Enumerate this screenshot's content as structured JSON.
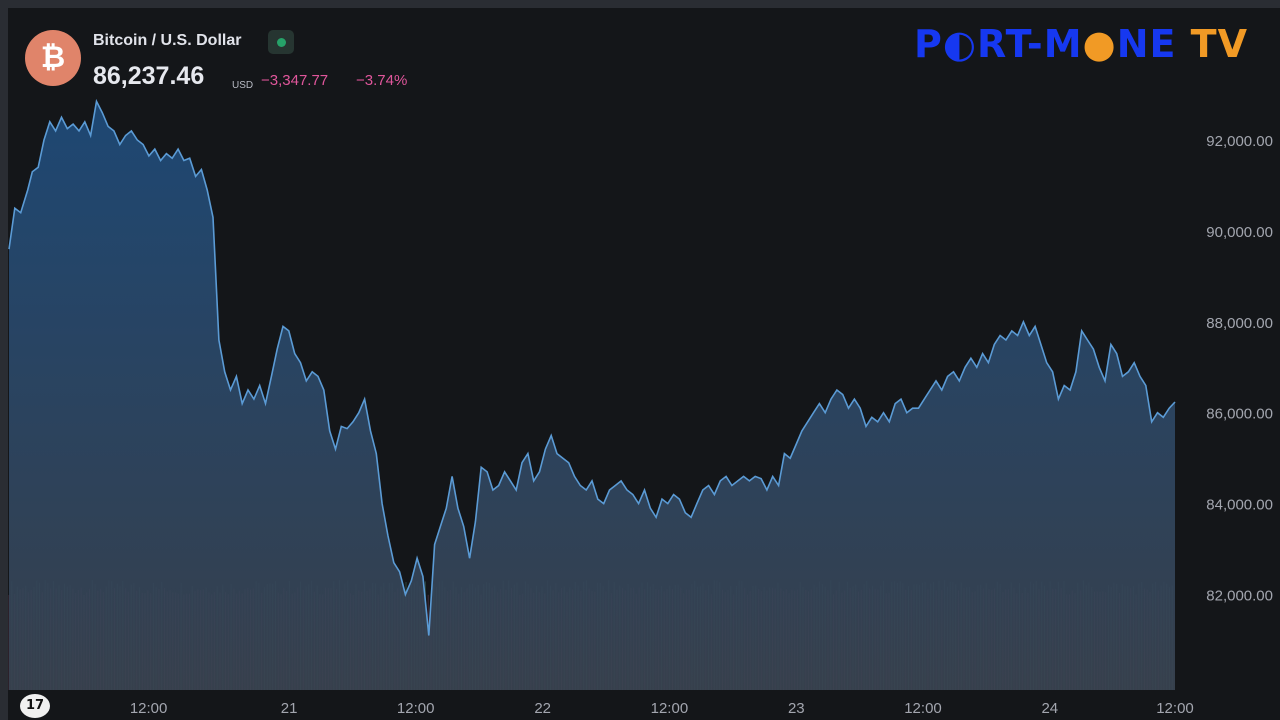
{
  "header": {
    "symbol_name": "Bitcoin / U.S. Dollar",
    "coin_icon": "bitcoin-icon",
    "status": "market-open",
    "price": "86,237.46",
    "currency": "USD",
    "change": "−3,347.77",
    "change_pct": "−3.74%",
    "colors": {
      "down": "#e0569b",
      "status": "#26a269",
      "coin": "#e0846a"
    }
  },
  "logo": {
    "parts": [
      {
        "text": "P",
        "color": "#1638f0"
      },
      {
        "text": "◐",
        "color": "#1638f0"
      },
      {
        "text": "RT-M",
        "color": "#1638f0"
      },
      {
        "text": "●",
        "color": "#f19a25"
      },
      {
        "text": "NE",
        "color": "#1638f0"
      },
      {
        "text": " TV",
        "color": "#f19a25"
      }
    ]
  },
  "chart_data": {
    "type": "area",
    "ylim": [
      79900,
      94200
    ],
    "y_ticks": [
      "92,000.00",
      "90,000.00",
      "88,000.00",
      "86,000.00",
      "84,000.00",
      "82,000.00"
    ],
    "y_tick_values": [
      92000,
      90000,
      88000,
      86000,
      84000,
      82000
    ],
    "x_ticks": [
      "12:00",
      "21",
      "12:00",
      "22",
      "12:00",
      "23",
      "12:00",
      "24",
      "12:00"
    ],
    "x_tick_values": [
      0.1197,
      0.2402,
      0.3488,
      0.4577,
      0.5664,
      0.6752,
      0.7839,
      0.8926,
      1.0
    ],
    "grid": false,
    "line_color": "#5b9bd5",
    "series": [
      {
        "values": [
          [
            0.0,
            89600
          ],
          [
            0.005,
            90500
          ],
          [
            0.01,
            90400
          ],
          [
            0.016,
            90900
          ],
          [
            0.02,
            91300
          ],
          [
            0.025,
            91400
          ],
          [
            0.03,
            92000
          ],
          [
            0.035,
            92400
          ],
          [
            0.04,
            92200
          ],
          [
            0.045,
            92500
          ],
          [
            0.05,
            92250
          ],
          [
            0.055,
            92350
          ],
          [
            0.06,
            92200
          ],
          [
            0.065,
            92400
          ],
          [
            0.07,
            92100
          ],
          [
            0.075,
            92850
          ],
          [
            0.08,
            92600
          ],
          [
            0.085,
            92300
          ],
          [
            0.09,
            92200
          ],
          [
            0.095,
            91900
          ],
          [
            0.1,
            92100
          ],
          [
            0.105,
            92200
          ],
          [
            0.11,
            92000
          ],
          [
            0.115,
            91900
          ],
          [
            0.12,
            91650
          ],
          [
            0.125,
            91800
          ],
          [
            0.13,
            91550
          ],
          [
            0.135,
            91700
          ],
          [
            0.14,
            91600
          ],
          [
            0.145,
            91800
          ],
          [
            0.15,
            91550
          ],
          [
            0.155,
            91600
          ],
          [
            0.16,
            91200
          ],
          [
            0.165,
            91350
          ],
          [
            0.17,
            90900
          ],
          [
            0.175,
            90300
          ],
          [
            0.18,
            87600
          ],
          [
            0.185,
            86900
          ],
          [
            0.19,
            86500
          ],
          [
            0.195,
            86800
          ],
          [
            0.2,
            86200
          ],
          [
            0.205,
            86500
          ],
          [
            0.21,
            86300
          ],
          [
            0.215,
            86600
          ],
          [
            0.22,
            86200
          ],
          [
            0.225,
            86800
          ],
          [
            0.23,
            87400
          ],
          [
            0.235,
            87900
          ],
          [
            0.24,
            87800
          ],
          [
            0.245,
            87300
          ],
          [
            0.25,
            87100
          ],
          [
            0.255,
            86700
          ],
          [
            0.26,
            86900
          ],
          [
            0.265,
            86800
          ],
          [
            0.27,
            86500
          ],
          [
            0.275,
            85600
          ],
          [
            0.28,
            85200
          ],
          [
            0.285,
            85700
          ],
          [
            0.29,
            85650
          ],
          [
            0.295,
            85800
          ],
          [
            0.3,
            86000
          ],
          [
            0.305,
            86300
          ],
          [
            0.31,
            85600
          ],
          [
            0.315,
            85100
          ],
          [
            0.32,
            84000
          ],
          [
            0.325,
            83300
          ],
          [
            0.33,
            82700
          ],
          [
            0.335,
            82500
          ],
          [
            0.34,
            82000
          ],
          [
            0.345,
            82300
          ],
          [
            0.35,
            82800
          ],
          [
            0.355,
            82400
          ],
          [
            0.36,
            81100
          ],
          [
            0.365,
            83100
          ],
          [
            0.37,
            83500
          ],
          [
            0.375,
            83900
          ],
          [
            0.38,
            84600
          ],
          [
            0.385,
            83900
          ],
          [
            0.39,
            83500
          ],
          [
            0.395,
            82800
          ],
          [
            0.4,
            83600
          ],
          [
            0.405,
            84800
          ],
          [
            0.41,
            84700
          ],
          [
            0.415,
            84300
          ],
          [
            0.42,
            84400
          ],
          [
            0.425,
            84700
          ],
          [
            0.43,
            84500
          ],
          [
            0.435,
            84300
          ],
          [
            0.44,
            84900
          ],
          [
            0.445,
            85100
          ],
          [
            0.45,
            84500
          ],
          [
            0.455,
            84700
          ],
          [
            0.46,
            85200
          ],
          [
            0.465,
            85500
          ],
          [
            0.47,
            85100
          ],
          [
            0.475,
            85000
          ],
          [
            0.48,
            84900
          ],
          [
            0.485,
            84600
          ],
          [
            0.49,
            84400
          ],
          [
            0.495,
            84300
          ],
          [
            0.5,
            84500
          ],
          [
            0.505,
            84100
          ],
          [
            0.51,
            84000
          ],
          [
            0.515,
            84300
          ],
          [
            0.52,
            84400
          ],
          [
            0.525,
            84500
          ],
          [
            0.53,
            84300
          ],
          [
            0.535,
            84200
          ],
          [
            0.54,
            84000
          ],
          [
            0.545,
            84300
          ],
          [
            0.55,
            83900
          ],
          [
            0.555,
            83700
          ],
          [
            0.56,
            84100
          ],
          [
            0.565,
            84000
          ],
          [
            0.57,
            84200
          ],
          [
            0.575,
            84100
          ],
          [
            0.58,
            83800
          ],
          [
            0.585,
            83700
          ],
          [
            0.59,
            84000
          ],
          [
            0.595,
            84300
          ],
          [
            0.6,
            84400
          ],
          [
            0.605,
            84200
          ],
          [
            0.61,
            84500
          ],
          [
            0.615,
            84600
          ],
          [
            0.62,
            84400
          ],
          [
            0.625,
            84500
          ],
          [
            0.63,
            84600
          ],
          [
            0.635,
            84500
          ],
          [
            0.64,
            84600
          ],
          [
            0.645,
            84550
          ],
          [
            0.65,
            84300
          ],
          [
            0.655,
            84600
          ],
          [
            0.66,
            84400
          ],
          [
            0.665,
            85100
          ],
          [
            0.67,
            85000
          ],
          [
            0.675,
            85300
          ],
          [
            0.68,
            85600
          ],
          [
            0.685,
            85800
          ],
          [
            0.69,
            86000
          ],
          [
            0.695,
            86200
          ],
          [
            0.7,
            86000
          ],
          [
            0.705,
            86300
          ],
          [
            0.71,
            86500
          ],
          [
            0.715,
            86400
          ],
          [
            0.72,
            86100
          ],
          [
            0.725,
            86300
          ],
          [
            0.73,
            86100
          ],
          [
            0.735,
            85700
          ],
          [
            0.74,
            85900
          ],
          [
            0.745,
            85800
          ],
          [
            0.75,
            86000
          ],
          [
            0.755,
            85800
          ],
          [
            0.76,
            86200
          ],
          [
            0.765,
            86300
          ],
          [
            0.77,
            86000
          ],
          [
            0.775,
            86100
          ],
          [
            0.78,
            86100
          ],
          [
            0.785,
            86300
          ],
          [
            0.79,
            86500
          ],
          [
            0.795,
            86700
          ],
          [
            0.8,
            86500
          ],
          [
            0.805,
            86800
          ],
          [
            0.81,
            86900
          ],
          [
            0.815,
            86700
          ],
          [
            0.82,
            87000
          ],
          [
            0.825,
            87200
          ],
          [
            0.83,
            87000
          ],
          [
            0.835,
            87300
          ],
          [
            0.84,
            87100
          ],
          [
            0.845,
            87500
          ],
          [
            0.85,
            87700
          ],
          [
            0.855,
            87600
          ],
          [
            0.86,
            87800
          ],
          [
            0.865,
            87700
          ],
          [
            0.87,
            88000
          ],
          [
            0.875,
            87700
          ],
          [
            0.88,
            87900
          ],
          [
            0.885,
            87500
          ],
          [
            0.89,
            87100
          ],
          [
            0.895,
            86900
          ],
          [
            0.9,
            86300
          ],
          [
            0.905,
            86600
          ],
          [
            0.91,
            86500
          ],
          [
            0.915,
            86900
          ],
          [
            0.92,
            87800
          ],
          [
            0.925,
            87600
          ],
          [
            0.93,
            87400
          ],
          [
            0.935,
            87000
          ],
          [
            0.94,
            86700
          ],
          [
            0.945,
            87500
          ],
          [
            0.95,
            87300
          ],
          [
            0.955,
            86800
          ],
          [
            0.96,
            86900
          ],
          [
            0.965,
            87100
          ],
          [
            0.97,
            86800
          ],
          [
            0.975,
            86600
          ],
          [
            0.98,
            85800
          ],
          [
            0.985,
            86000
          ],
          [
            0.99,
            85900
          ],
          [
            0.995,
            86100
          ],
          [
            1.0,
            86237
          ]
        ]
      }
    ]
  }
}
